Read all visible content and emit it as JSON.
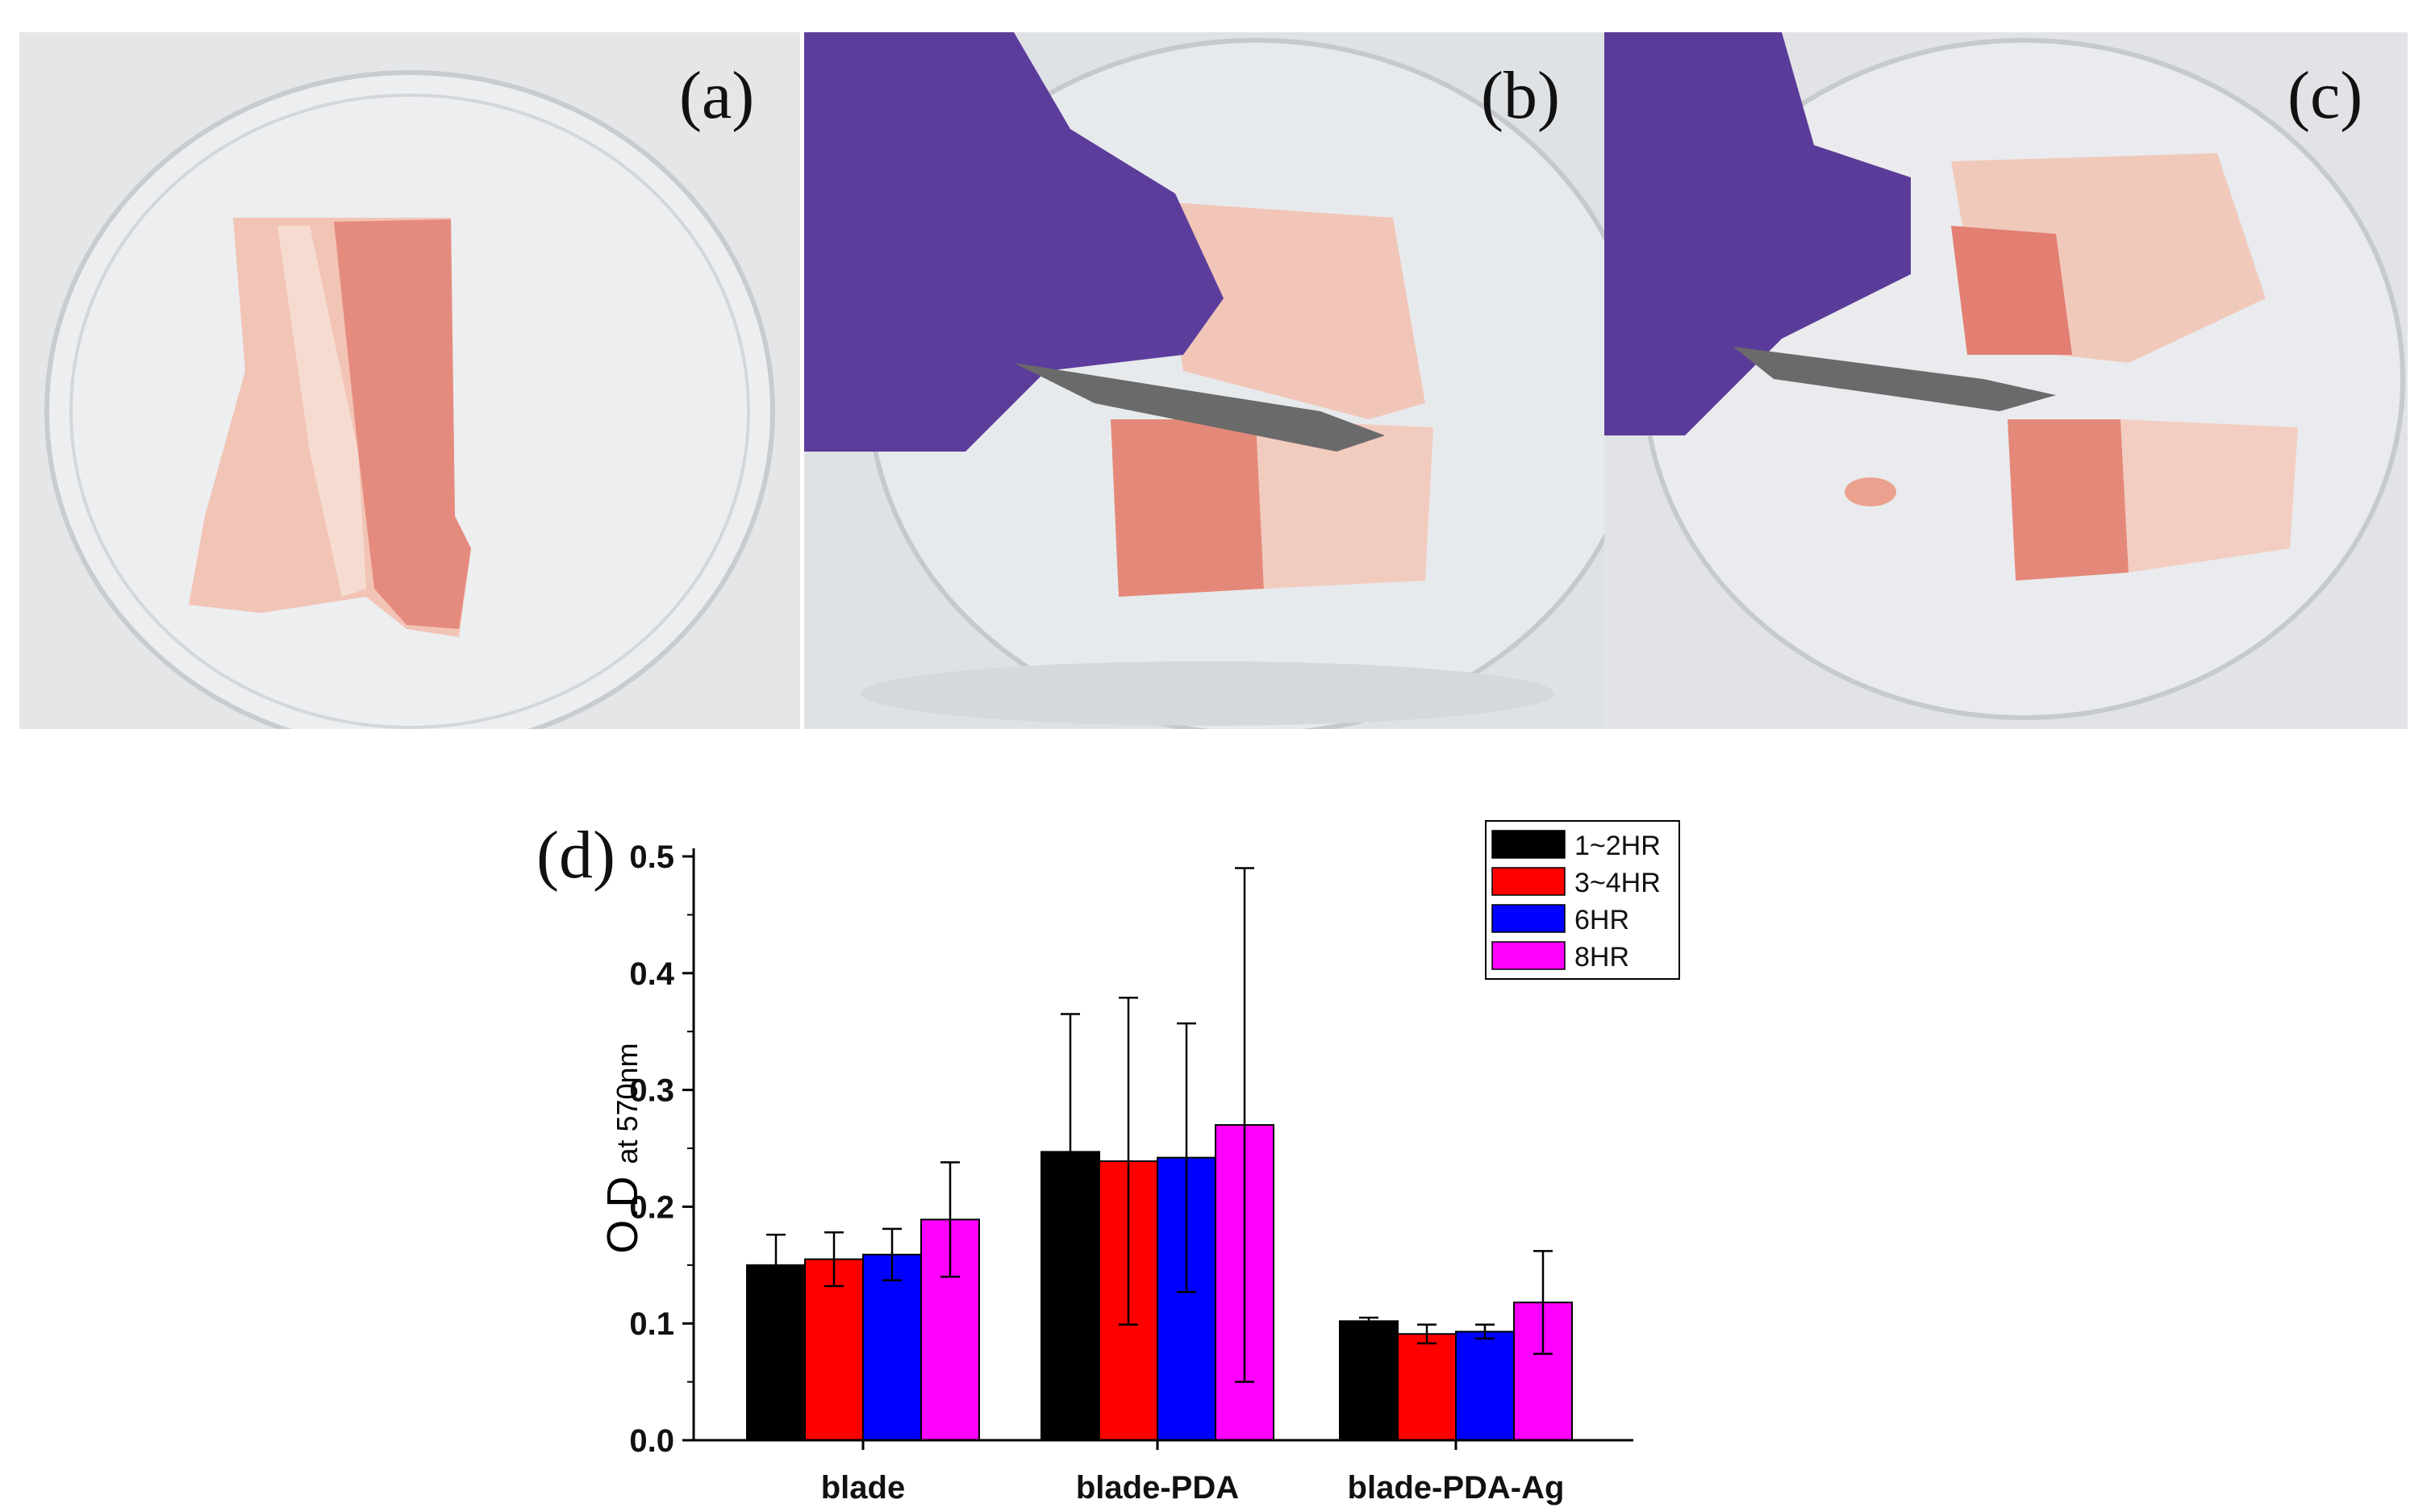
{
  "panels": [
    {
      "label": "(a)",
      "description_icon": "pork-belly-in-petri-dish"
    },
    {
      "label": "(b)",
      "description_icon": "gloved-hand-cutting-with-blade"
    },
    {
      "label": "(c)",
      "description_icon": "pork-cut-into-pieces"
    }
  ],
  "chart_label": "(d)",
  "chart_data": {
    "type": "bar",
    "title": "",
    "xlabel": "",
    "ylabel_main": "O.D",
    "ylabel_sub": "at 570nm",
    "ylim": [
      0,
      0.5
    ],
    "yticks": [
      "0.0",
      "0.1",
      "0.2",
      "0.3",
      "0.4",
      "0.5"
    ],
    "categories": [
      "blade",
      "blade-PDA",
      "blade-PDA-Ag"
    ],
    "series": [
      {
        "name": "1~2HR",
        "color": "#000000",
        "values": [
          0.15,
          0.247,
          0.102
        ],
        "errors": [
          0.026,
          0.118,
          0.003
        ]
      },
      {
        "name": "3~4HR",
        "color": "#ff0000",
        "values": [
          0.155,
          0.239,
          0.091
        ],
        "errors": [
          0.023,
          0.14,
          0.008
        ]
      },
      {
        "name": "6HR",
        "color": "#0000ff",
        "values": [
          0.159,
          0.242,
          0.093
        ],
        "errors": [
          0.022,
          0.115,
          0.006
        ]
      },
      {
        "name": "8HR",
        "color": "#ff00ff",
        "values": [
          0.189,
          0.27,
          0.118
        ],
        "errors": [
          0.049,
          0.22,
          0.044
        ]
      }
    ],
    "legend_position": "top-right"
  }
}
